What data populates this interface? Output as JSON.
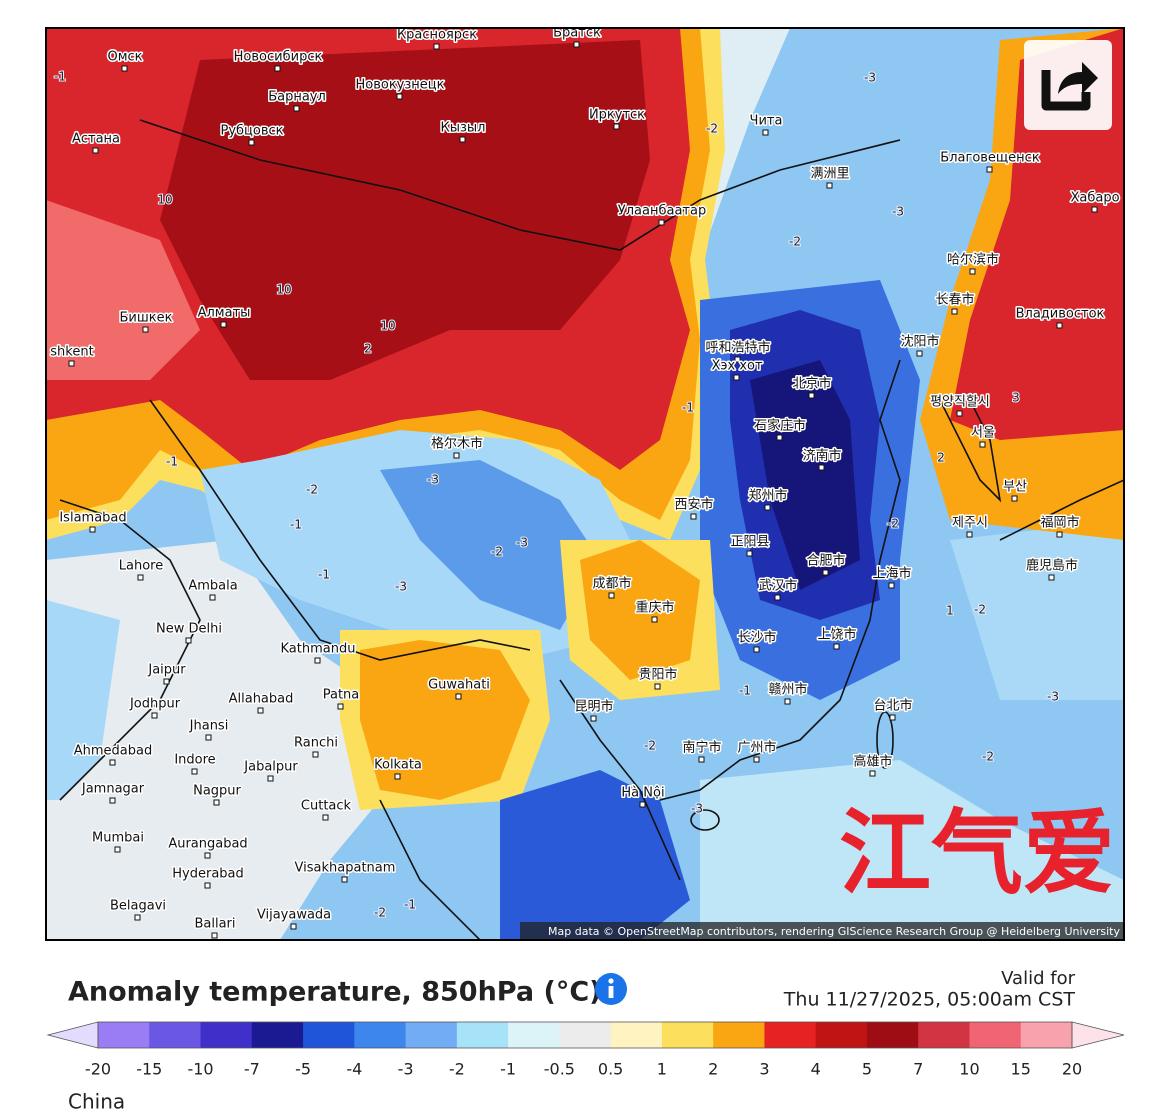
{
  "map": {
    "attribution": "Map data © OpenStreetMap contributors, rendering GIScience Research Group @ Heidelberg University",
    "cities": [
      "Омск",
      "Новосибирск",
      "Красноярск",
      "Братск",
      "Барнаул",
      "Новокузнецк",
      "Астана",
      "Рубцовск",
      "Кызыл",
      "Иркутск",
      "Чита",
      "满洲里",
      "Благовещенск",
      "Хабаро",
      "Улаанбаатар",
      "哈尔滨市",
      "长春市",
      "Владивосток",
      "Бишкек",
      "Алматы",
      "shkent",
      "呼和浩特市",
      "Хэх хот",
      "沈阳市",
      "北京市",
      "평양직할시",
      "서울",
      "石家庄市",
      "济南市",
      "格尔木市",
      "西安市",
      "郑州市",
      "Islamabad",
      "부산",
      "제주시",
      "福岡市",
      "鹿児島市",
      "合肥市",
      "正阳县",
      "Lahore",
      "Ambala",
      "成都市",
      "武汉市",
      "上海市",
      "重庆市",
      "New Delhi",
      "Kathmandu",
      "长沙市",
      "上饶市",
      "Jaipur",
      "Guwahati",
      "贵阳市",
      "Jodhpur",
      "Allahabad",
      "Patna",
      "昆明市",
      "赣州市",
      "台北市",
      "Jhansi",
      "Ahmedabad",
      "Ranchi",
      "Indore",
      "南宁市",
      "广州市",
      "高雄市",
      "Jabalpur",
      "Kolkata",
      "Jamnagar",
      "Nagpur",
      "Hà Nội",
      "Cuttack",
      "Mumbai",
      "Aurangabad",
      "Hyderabad",
      "Visakhapatnam",
      "Belagavi",
      "Ballari",
      "Vijayawada"
    ],
    "contour_labels": [
      "-1",
      "10",
      "10",
      "10",
      "2",
      "-3",
      "-2",
      "-3",
      "-2",
      "-1",
      "-2",
      "-1",
      "-3",
      "-2",
      "-3",
      "-1",
      "-3",
      "-1",
      "-2",
      "-3",
      "-2",
      "-1",
      "1",
      "-2",
      "-3",
      "-2",
      "2",
      "3",
      "-1",
      "-2"
    ]
  },
  "watermark": "江气爱",
  "legend": {
    "title": "Anomaly temperature, 850hPa (°C)",
    "valid_label": "Valid for",
    "valid_time": "Thu 11/27/2025, 05:00am CST",
    "colors": [
      "#e4dcff",
      "#9a7cf4",
      "#6a58e4",
      "#3e30c8",
      "#1c1a92",
      "#1f55d8",
      "#3d86ee",
      "#72acf4",
      "#a6e2f8",
      "#dcf4f8",
      "#ececec",
      "#fff3c2",
      "#fcdf5c",
      "#faa612",
      "#e62222",
      "#c01414",
      "#9e0c14",
      "#d23444",
      "#f06474",
      "#f7a2ac",
      "#fde2ea"
    ],
    "ticks": [
      "-20",
      "-15",
      "-10",
      "-7",
      "-5",
      "-4",
      "-3",
      "-2",
      "-1",
      "-0.5",
      "0.5",
      "1",
      "2",
      "3",
      "4",
      "5",
      "7",
      "10",
      "15",
      "20"
    ],
    "region": "China"
  }
}
